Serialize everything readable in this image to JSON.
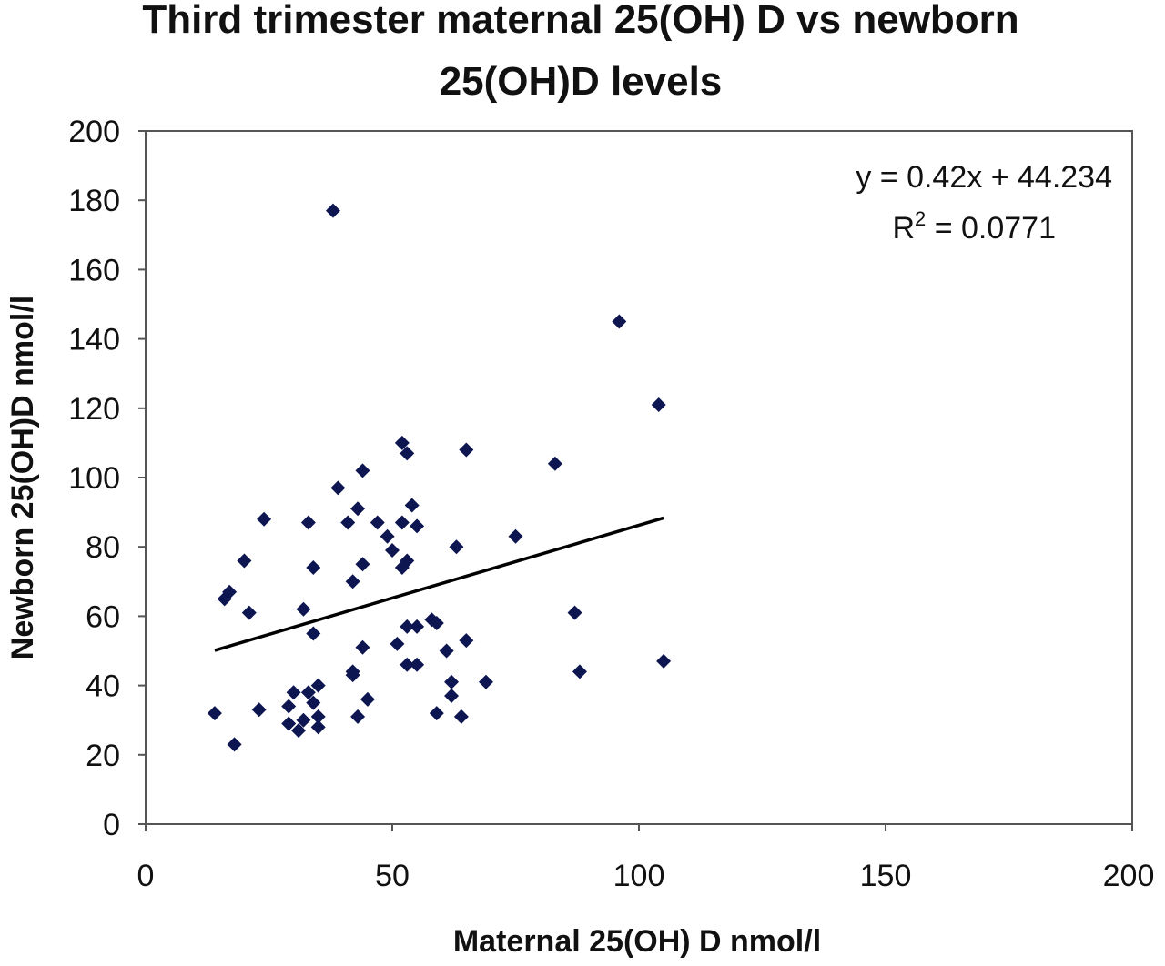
{
  "chart_data": {
    "type": "scatter",
    "title_lines": [
      "Third trimester maternal 25(OH) D vs newborn",
      "25(OH)D levels"
    ],
    "xlabel": "Maternal 25(OH) D nmol/l",
    "ylabel": "Newborn 25(OH)D nmol/l",
    "xlim": [
      0,
      200
    ],
    "ylim": [
      0,
      200
    ],
    "x_ticks": [
      0,
      50,
      100,
      150,
      200
    ],
    "y_ticks": [
      0,
      20,
      40,
      60,
      80,
      100,
      120,
      140,
      160,
      180,
      200
    ],
    "marker_color": "#0d1650",
    "trendline": {
      "equation": "y = 0.42x  + 44.234",
      "r2_prefix": "R",
      "r2_sup": "2",
      "r2_suffix": " = 0.0771",
      "slope": 0.42,
      "intercept": 44.234,
      "x_range": [
        14,
        105
      ],
      "color": "#000000"
    },
    "points": [
      {
        "x": 14,
        "y": 32
      },
      {
        "x": 16,
        "y": 65
      },
      {
        "x": 17,
        "y": 67
      },
      {
        "x": 18,
        "y": 23
      },
      {
        "x": 20,
        "y": 76
      },
      {
        "x": 21,
        "y": 61
      },
      {
        "x": 23,
        "y": 33
      },
      {
        "x": 24,
        "y": 88
      },
      {
        "x": 29,
        "y": 34
      },
      {
        "x": 29,
        "y": 29
      },
      {
        "x": 30,
        "y": 38
      },
      {
        "x": 31,
        "y": 27
      },
      {
        "x": 32,
        "y": 62
      },
      {
        "x": 32,
        "y": 30
      },
      {
        "x": 33,
        "y": 87
      },
      {
        "x": 33,
        "y": 38
      },
      {
        "x": 34,
        "y": 74
      },
      {
        "x": 34,
        "y": 55
      },
      {
        "x": 34,
        "y": 35
      },
      {
        "x": 35,
        "y": 40
      },
      {
        "x": 35,
        "y": 31
      },
      {
        "x": 35,
        "y": 28
      },
      {
        "x": 38,
        "y": 177
      },
      {
        "x": 39,
        "y": 97
      },
      {
        "x": 41,
        "y": 87
      },
      {
        "x": 42,
        "y": 70
      },
      {
        "x": 42,
        "y": 44
      },
      {
        "x": 42,
        "y": 43
      },
      {
        "x": 43,
        "y": 91
      },
      {
        "x": 43,
        "y": 31
      },
      {
        "x": 44,
        "y": 102
      },
      {
        "x": 44,
        "y": 75
      },
      {
        "x": 44,
        "y": 51
      },
      {
        "x": 45,
        "y": 36
      },
      {
        "x": 47,
        "y": 87
      },
      {
        "x": 49,
        "y": 83
      },
      {
        "x": 50,
        "y": 79
      },
      {
        "x": 51,
        "y": 52
      },
      {
        "x": 52,
        "y": 110
      },
      {
        "x": 52,
        "y": 87
      },
      {
        "x": 52,
        "y": 74
      },
      {
        "x": 53,
        "y": 107
      },
      {
        "x": 53,
        "y": 76
      },
      {
        "x": 53,
        "y": 57
      },
      {
        "x": 53,
        "y": 46
      },
      {
        "x": 54,
        "y": 92
      },
      {
        "x": 55,
        "y": 86
      },
      {
        "x": 55,
        "y": 57
      },
      {
        "x": 55,
        "y": 46
      },
      {
        "x": 58,
        "y": 59
      },
      {
        "x": 59,
        "y": 58
      },
      {
        "x": 59,
        "y": 32
      },
      {
        "x": 61,
        "y": 50
      },
      {
        "x": 62,
        "y": 41
      },
      {
        "x": 62,
        "y": 37
      },
      {
        "x": 63,
        "y": 80
      },
      {
        "x": 64,
        "y": 31
      },
      {
        "x": 65,
        "y": 108
      },
      {
        "x": 65,
        "y": 53
      },
      {
        "x": 69,
        "y": 41
      },
      {
        "x": 75,
        "y": 83
      },
      {
        "x": 83,
        "y": 104
      },
      {
        "x": 87,
        "y": 61
      },
      {
        "x": 88,
        "y": 44
      },
      {
        "x": 96,
        "y": 145
      },
      {
        "x": 104,
        "y": 121
      },
      {
        "x": 105,
        "y": 47
      }
    ]
  }
}
